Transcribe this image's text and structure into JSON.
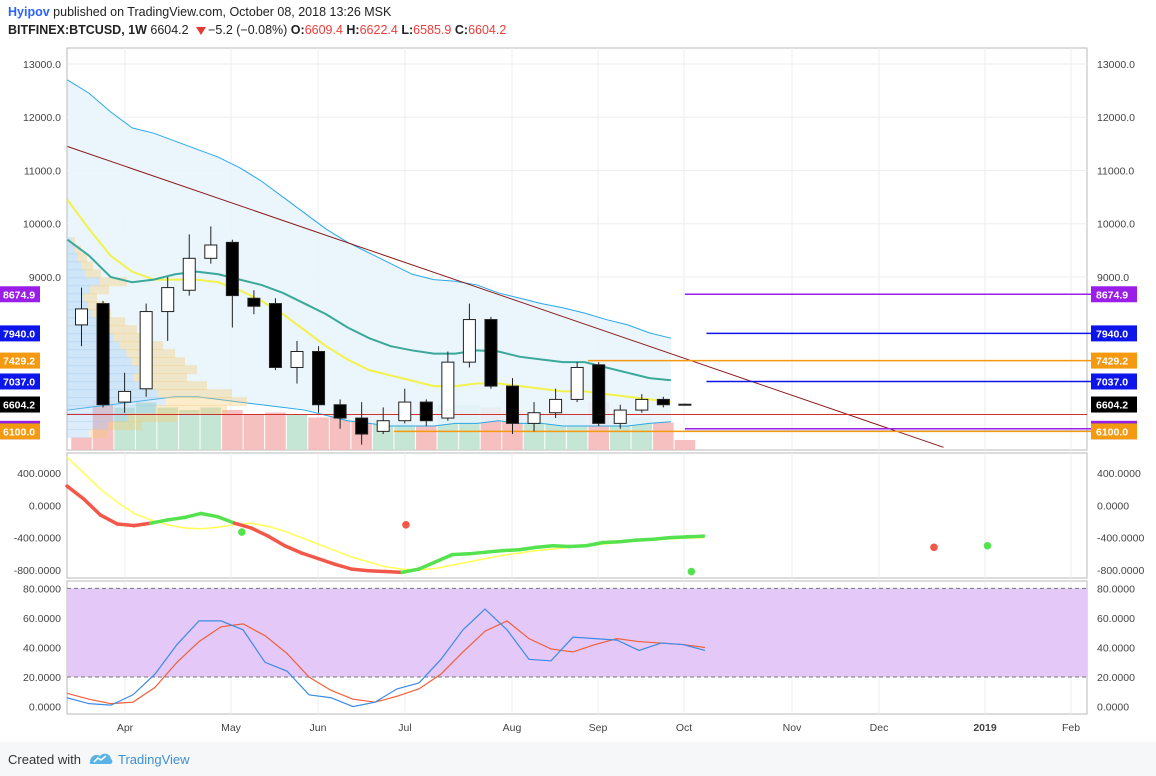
{
  "header": {
    "author": "Hyipov",
    "published_text": "published on TradingView.com, October 08, 2018 13:26 MSK",
    "symbol": "BITFINEX:BTCUSD, 1W",
    "last": "6604.2",
    "change": "−5.2 (−0.08%)",
    "o_label": "O:",
    "o_val": "6609.4",
    "h_label": "H:",
    "h_val": "6622.4",
    "l_label": "L:",
    "l_val": "6585.9",
    "c_label": "C:",
    "c_val": "6604.2"
  },
  "footer": {
    "created_with": "Created with",
    "brand": "TradingView"
  },
  "colors": {
    "bull_candle": "#ffffff",
    "bear_candle": "#000000",
    "bb_line": "#29a8e8",
    "bb_fill": "#e7f3fc",
    "ma_yellow": "#f2f24a",
    "ma_teal": "#3aa89a",
    "trendline": "#8b1a1a",
    "macd_up": "#55e24f",
    "macd_down": "#f2574a",
    "macd_signal": "#ffff55",
    "stoch_k": "#3d8be6",
    "stoch_d": "#f0603a",
    "stoch_band": "#e3c8f8",
    "purple": "#9b1ee8",
    "blue": "#0d16ea",
    "orange": "#f59a10"
  },
  "chart_data": [
    {
      "type": "candlestick",
      "timeframe": "1W",
      "ylim": [
        5750,
        13300
      ],
      "yticks": [
        "13000.0",
        "12000.0",
        "11000.0",
        "10000.0",
        "9000.0"
      ],
      "xlabels": [
        "Apr",
        "May",
        "Jun",
        "Jul",
        "Aug",
        "Sep",
        "Oct",
        "Nov",
        "Dec",
        "2019",
        "Feb"
      ],
      "candles": [
        {
          "o": 8100,
          "h": 8800,
          "l": 7700,
          "c": 8400
        },
        {
          "o": 8500,
          "h": 8550,
          "l": 6550,
          "c": 6600
        },
        {
          "o": 6650,
          "h": 7200,
          "l": 6450,
          "c": 6850
        },
        {
          "o": 6900,
          "h": 8500,
          "l": 6750,
          "c": 8350
        },
        {
          "o": 8350,
          "h": 9000,
          "l": 7800,
          "c": 8800
        },
        {
          "o": 8750,
          "h": 9800,
          "l": 8650,
          "c": 9350
        },
        {
          "o": 9350,
          "h": 9950,
          "l": 9250,
          "c": 9600
        },
        {
          "o": 9650,
          "h": 9700,
          "l": 8050,
          "c": 8650
        },
        {
          "o": 8600,
          "h": 8750,
          "l": 8300,
          "c": 8450
        },
        {
          "o": 8500,
          "h": 8600,
          "l": 7250,
          "c": 7300
        },
        {
          "o": 7300,
          "h": 7800,
          "l": 7000,
          "c": 7600
        },
        {
          "o": 7600,
          "h": 7700,
          "l": 6450,
          "c": 6600
        },
        {
          "o": 6600,
          "h": 6700,
          "l": 6150,
          "c": 6350
        },
        {
          "o": 6350,
          "h": 6650,
          "l": 5850,
          "c": 6050
        },
        {
          "o": 6100,
          "h": 6550,
          "l": 6050,
          "c": 6300
        },
        {
          "o": 6300,
          "h": 6900,
          "l": 6250,
          "c": 6650
        },
        {
          "o": 6650,
          "h": 6700,
          "l": 6200,
          "c": 6300
        },
        {
          "o": 6350,
          "h": 7600,
          "l": 6300,
          "c": 7400
        },
        {
          "o": 7400,
          "h": 8500,
          "l": 7300,
          "c": 8200
        },
        {
          "o": 8200,
          "h": 8250,
          "l": 6900,
          "c": 6950
        },
        {
          "o": 6950,
          "h": 7100,
          "l": 6050,
          "c": 6250
        },
        {
          "o": 6250,
          "h": 6650,
          "l": 6100,
          "c": 6450
        },
        {
          "o": 6450,
          "h": 6900,
          "l": 6350,
          "c": 6700
        },
        {
          "o": 6700,
          "h": 7400,
          "l": 6650,
          "c": 7300
        },
        {
          "o": 7350,
          "h": 7400,
          "l": 6200,
          "c": 6250
        },
        {
          "o": 6250,
          "h": 6600,
          "l": 6150,
          "c": 6500
        },
        {
          "o": 6500,
          "h": 6800,
          "l": 6450,
          "c": 6700
        },
        {
          "o": 6700,
          "h": 6750,
          "l": 6550,
          "c": 6600
        },
        {
          "o": 6609.4,
          "h": 6622.4,
          "l": 6585.9,
          "c": 6604.2
        }
      ],
      "bb_upper": [
        12700,
        12450,
        12100,
        11800,
        11700,
        11550,
        11400,
        11250,
        11050,
        10800,
        10500,
        10200,
        9900,
        9650,
        9450,
        9250,
        9050,
        8950,
        8920,
        8850,
        8700,
        8600,
        8500,
        8420,
        8320,
        8200,
        8100,
        7950,
        7850
      ],
      "bb_lower": [
        6500,
        6550,
        6600,
        6650,
        6700,
        6750,
        6750,
        6700,
        6650,
        6600,
        6550,
        6500,
        6400,
        6300,
        6250,
        6200,
        6200,
        6200,
        6250,
        6250,
        6300,
        6250,
        6250,
        6200,
        6200,
        6200,
        6200,
        6250,
        6280
      ],
      "ma_yellow": [
        10450,
        9900,
        9400,
        9100,
        8950,
        8950,
        8950,
        8900,
        8750,
        8550,
        8300,
        8000,
        7700,
        7450,
        7250,
        7150,
        7050,
        6950,
        6950,
        7000,
        7000,
        6950,
        6900,
        6850,
        6850,
        6800,
        6750,
        6700,
        6650
      ],
      "ma_teal": [
        9700,
        9400,
        9000,
        8900,
        8950,
        9050,
        9100,
        9050,
        8950,
        8850,
        8700,
        8500,
        8300,
        8050,
        7850,
        7700,
        7620,
        7560,
        7560,
        7620,
        7600,
        7500,
        7450,
        7400,
        7400,
        7300,
        7200,
        7100,
        7060
      ],
      "trendline": {
        "from": {
          "i": 0,
          "v": 11450
        },
        "to": {
          "i": 40,
          "v": 5800
        }
      },
      "horizontal_levels": [
        {
          "price": 8674.9,
          "label": "8674.9",
          "color": "#9b1ee8",
          "from": 28,
          "to": 48
        },
        {
          "price": 7940.0,
          "label": "7940.0",
          "color": "#0d16ea",
          "from": 29,
          "to": 48
        },
        {
          "price": 7429.2,
          "label": "7429.2",
          "color": "#f59a10",
          "from": 23.5,
          "to": 48
        },
        {
          "price": 7037.0,
          "label": "7037.0",
          "color": "#0d16ea",
          "from": 29,
          "to": 48
        },
        {
          "price": 6604.2,
          "label": "6604.2",
          "color": "#000000",
          "from": 28.7,
          "to": 29.3
        },
        {
          "price": 6148.0,
          "label": "6148.0",
          "color": "#9b1ee8",
          "from": 28,
          "to": 48
        },
        {
          "price": 6103.0,
          "label": "6103.0",
          "color": "#0d16ea",
          "from": 28,
          "to": 48
        },
        {
          "price": 6100.0,
          "label": "6100.0",
          "color": "#f59a10",
          "from": 14.5,
          "to": 48
        }
      ],
      "volume": [
        {
          "v": 0.25,
          "bull": false
        },
        {
          "v": 1.0,
          "bull": false
        },
        {
          "v": 0.85,
          "bull": true
        },
        {
          "v": 0.95,
          "bull": true
        },
        {
          "v": 0.85,
          "bull": true
        },
        {
          "v": 0.8,
          "bull": true
        },
        {
          "v": 0.85,
          "bull": true
        },
        {
          "v": 0.8,
          "bull": false
        },
        {
          "v": 0.7,
          "bull": false
        },
        {
          "v": 0.75,
          "bull": false
        },
        {
          "v": 0.7,
          "bull": true
        },
        {
          "v": 0.65,
          "bull": false
        },
        {
          "v": 0.7,
          "bull": false
        },
        {
          "v": 0.6,
          "bull": false
        },
        {
          "v": 0.6,
          "bull": true
        },
        {
          "v": 0.55,
          "bull": true
        },
        {
          "v": 0.5,
          "bull": false
        },
        {
          "v": 0.9,
          "bull": true
        },
        {
          "v": 0.9,
          "bull": true
        },
        {
          "v": 0.85,
          "bull": false
        },
        {
          "v": 0.8,
          "bull": false
        },
        {
          "v": 0.75,
          "bull": true
        },
        {
          "v": 0.75,
          "bull": true
        },
        {
          "v": 0.7,
          "bull": true
        },
        {
          "v": 0.95,
          "bull": false
        },
        {
          "v": 0.6,
          "bull": true
        },
        {
          "v": 0.65,
          "bull": true
        },
        {
          "v": 0.55,
          "bull": false
        },
        {
          "v": 0.2,
          "bull": false
        }
      ]
    },
    {
      "type": "line",
      "title": "MACD",
      "ylim": [
        -900,
        650
      ],
      "yticks": [
        "400.0000",
        "0.0000",
        "-400.0000",
        "-800.0000"
      ],
      "macd": [
        240,
        80,
        -120,
        -230,
        -250,
        -220,
        -180,
        -150,
        -100,
        -140,
        -220,
        -280,
        -380,
        -500,
        -590,
        -660,
        -730,
        -790,
        -810,
        -820,
        -830,
        -790,
        -700,
        -610,
        -600,
        -580,
        -560,
        -550,
        -520,
        -500,
        -510,
        -500,
        -460,
        -450,
        -430,
        -420,
        -400,
        -390,
        -380
      ],
      "signal": [
        600,
        400,
        200,
        40,
        -100,
        -180,
        -240,
        -280,
        -290,
        -270,
        -240,
        -220,
        -260,
        -320,
        -400,
        -480,
        -560,
        -640,
        -700,
        -760,
        -790,
        -800,
        -780,
        -740,
        -700,
        -660,
        -620,
        -590,
        -560,
        -540,
        -520,
        -500,
        -480,
        -460,
        -440,
        -430,
        -415,
        -405,
        -400
      ],
      "cross_points": [
        {
          "i": 4.9,
          "v": -330,
          "color": "#55e24f"
        },
        {
          "i": 9.5,
          "v": -240,
          "color": "#f2574a"
        },
        {
          "i": 17.5,
          "v": -820,
          "color": "#55e24f"
        },
        {
          "i": 24.3,
          "v": -520,
          "color": "#f2574a"
        },
        {
          "i": 25.8,
          "v": -500,
          "color": "#55e24f"
        }
      ]
    },
    {
      "type": "line",
      "title": "Stochastic",
      "ylim": [
        -5,
        85
      ],
      "yticks": [
        "80.0000",
        "60.0000",
        "40.0000",
        "20.0000",
        "0.0000"
      ],
      "bands": [
        20,
        80
      ],
      "k": [
        6,
        2,
        1,
        8,
        22,
        42,
        58,
        58,
        52,
        30,
        24,
        8,
        6,
        0,
        3,
        12,
        16,
        32,
        52,
        66,
        52,
        32,
        31,
        47,
        46,
        45,
        38,
        43,
        42,
        38
      ],
      "d": [
        9,
        5,
        2,
        3,
        13,
        30,
        44,
        54,
        56,
        48,
        36,
        20,
        11,
        5,
        3,
        7,
        12,
        22,
        37,
        51,
        58,
        46,
        39,
        37,
        42,
        46,
        44,
        43,
        42,
        40
      ]
    }
  ]
}
